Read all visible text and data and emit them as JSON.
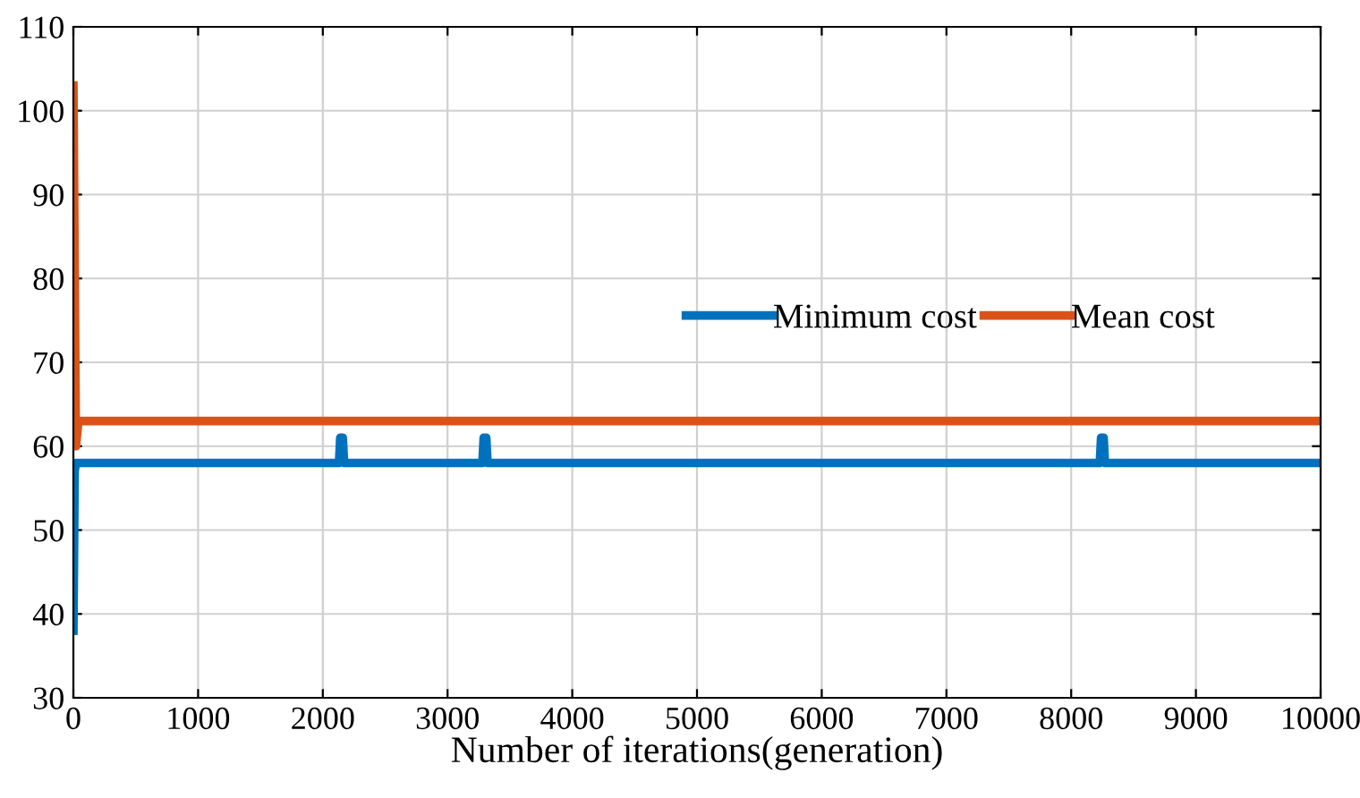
{
  "chart_data": {
    "type": "line",
    "xlabel": "Number of iterations(generation)",
    "xlim": [
      0,
      10000
    ],
    "xticks": [
      0,
      1000,
      2000,
      3000,
      4000,
      5000,
      6000,
      7000,
      8000,
      9000,
      10000
    ],
    "ylim": [
      30,
      110
    ],
    "yticks": [
      30,
      40,
      50,
      60,
      70,
      80,
      90,
      100,
      110
    ],
    "grid": true,
    "legend": "right",
    "line_style": "solid",
    "series": [
      {
        "name": "Minimum cost",
        "color": "#0072bd",
        "x": [
          0,
          10,
          20,
          2130,
          2140,
          2160,
          2170,
          3280,
          3290,
          3310,
          3320,
          8230,
          8240,
          8260,
          8270,
          10000
        ],
        "values": [
          38,
          57,
          58,
          58,
          61,
          61,
          58,
          58,
          61,
          61,
          58,
          58,
          61,
          61,
          58,
          58
        ]
      },
      {
        "name": "Mean cost",
        "color": "#d95319",
        "x": [
          0,
          20,
          40,
          1000,
          2000,
          3000,
          4000,
          5000,
          6000,
          7000,
          8000,
          9000,
          10000
        ],
        "values": [
          103,
          60,
          63,
          63,
          63,
          63,
          63,
          63,
          63,
          63,
          63,
          63,
          63
        ]
      }
    ]
  }
}
